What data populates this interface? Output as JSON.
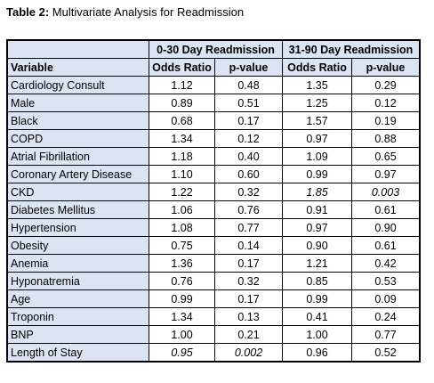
{
  "title": {
    "label": "Table 2:",
    "text": "Multivariate Analysis for Readmission"
  },
  "table": {
    "groups": [
      "0-30 Day Readmission",
      "31-90 Day Readmission"
    ],
    "columns": [
      "Variable",
      "Odds Ratio",
      "p-value",
      "Odds Ratio",
      "p-value"
    ],
    "rows": [
      [
        "Cardiology Consult",
        "1.12",
        "0.48",
        "1.35",
        "0.29"
      ],
      [
        "Male",
        "0.89",
        "0.51",
        "1.25",
        "0.12"
      ],
      [
        "Black",
        "0.68",
        "0.17",
        "1.57",
        "0.19"
      ],
      [
        "COPD",
        "1.34",
        "0.12",
        "0.97",
        "0.88"
      ],
      [
        "Atrial Fibrillation",
        "1.18",
        "0.40",
        "1.09",
        "0.65"
      ],
      [
        "Coronary Artery Disease",
        "1.10",
        "0.60",
        "0.99",
        "0.97"
      ],
      [
        "CKD",
        "1.22",
        "0.32",
        "1.85",
        "0.003"
      ],
      [
        "Diabetes Mellitus",
        "1.06",
        "0.76",
        "0.91",
        "0.61"
      ],
      [
        "Hypertension",
        "1.08",
        "0.77",
        "0.97",
        "0.90"
      ],
      [
        "Obesity",
        "0.75",
        "0.14",
        "0.90",
        "0.61"
      ],
      [
        "Anemia",
        "1.36",
        "0.17",
        "1.21",
        "0.42"
      ],
      [
        "Hyponatremia",
        "0.76",
        "0.32",
        "0.85",
        "0.53"
      ],
      [
        "Age",
        "0.99",
        "0.17",
        "0.99",
        "0.09"
      ],
      [
        "Troponin",
        "1.34",
        "0.13",
        "0.41",
        "0.24"
      ],
      [
        "BNP",
        "1.00",
        "0.21",
        "1.00",
        "0.77"
      ],
      [
        "Length of Stay",
        "0.95",
        "0.002",
        "0.96",
        "0.52"
      ]
    ],
    "italic_cells": [
      [
        6,
        3
      ],
      [
        6,
        4
      ],
      [
        15,
        1
      ],
      [
        15,
        2
      ]
    ]
  }
}
